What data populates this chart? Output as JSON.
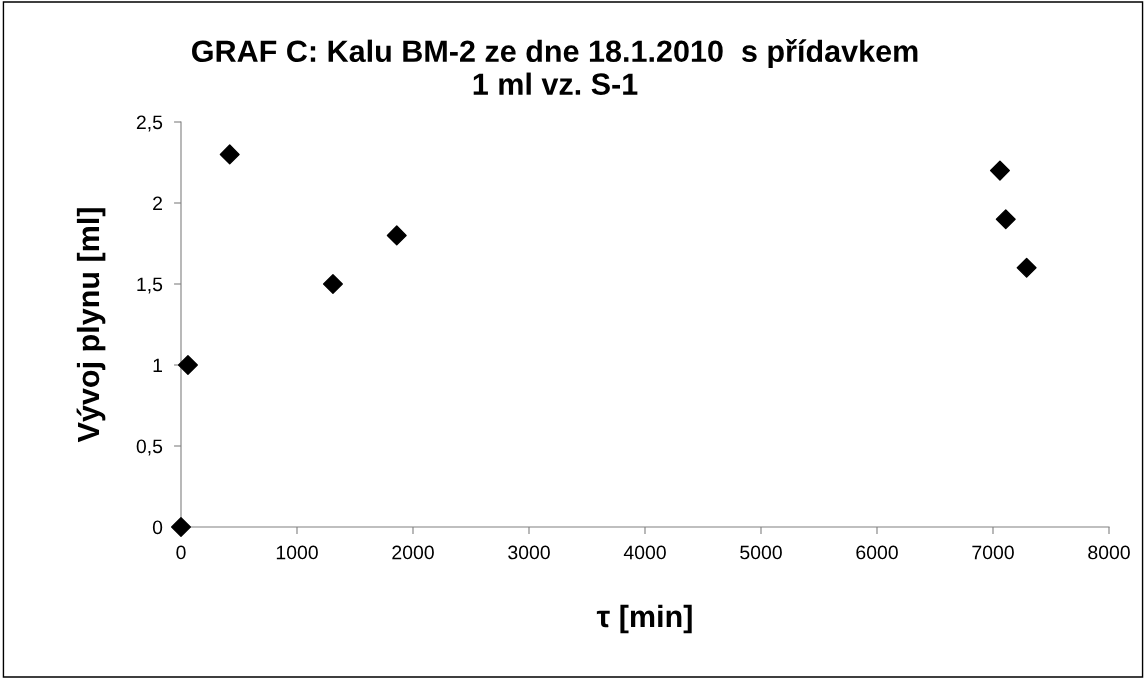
{
  "chart_data": {
    "type": "scatter",
    "title": "GRAF C: Kalu BM-2 ze dne 18.1.2010  s přídavkem\n1 ml vz. S-1",
    "xlabel": "τ [min]",
    "ylabel": "Vývoj plynu [ml]",
    "x": [
      0,
      60,
      420,
      1310,
      1860,
      7060,
      7110,
      7290
    ],
    "series": [
      {
        "color": "#000000",
        "values": [
          0,
          1.0,
          2.3,
          1.5,
          1.8,
          2.2,
          1.9,
          1.6
        ]
      }
    ],
    "marker": "diamond",
    "xlim": [
      0,
      8000
    ],
    "xticks": [
      0,
      1000,
      2000,
      3000,
      4000,
      5000,
      6000,
      7000,
      8000
    ],
    "ylim": [
      0,
      2.5
    ],
    "yticks": [
      0,
      {
        "value": 0.5,
        "label": "0,5"
      },
      1,
      {
        "value": 1.5,
        "label": "1,5"
      },
      2,
      {
        "value": 2.5,
        "label": "2,5"
      }
    ],
    "grid": false,
    "legend": false
  }
}
